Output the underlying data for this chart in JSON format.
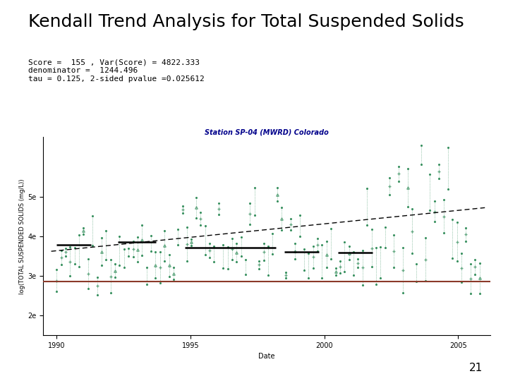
{
  "title": "Kendall Trend Analysis for Total Suspended Solids",
  "page_number": "21",
  "stats_text": "Score =  155 , Var(Score) = 4822.333\ndenominator =  1244.496\ntau = 0.125, 2-sided pvalue =0.025612",
  "plot_title": "Station SP-04 (MWRD) Colorado",
  "plot_title_color": "#00008B",
  "xlabel": "Date",
  "ylabel": "log(TOTAL SUSPENDED SOLIDS (mg/L))",
  "xmin": 1989.5,
  "xmax": 2006.2,
  "ymin": 1.5,
  "ymax": 6.5,
  "yticks": [
    2,
    3,
    4,
    5
  ],
  "ytick_labels": [
    "2e",
    "3e",
    "4e",
    "5e"
  ],
  "xticks": [
    1990,
    1995,
    2000,
    2005
  ],
  "red_line_y": 2.85,
  "trend_line_x": [
    1989.8,
    2006.0
  ],
  "trend_line_y": [
    3.62,
    4.72
  ],
  "segments": [
    {
      "x": [
        1990.0,
        1991.3
      ],
      "y": 3.78
    },
    {
      "x": [
        1992.3,
        1993.7
      ],
      "y": 3.85
    },
    {
      "x": [
        1994.8,
        1998.2
      ],
      "y": 3.72
    },
    {
      "x": [
        1998.5,
        1999.8
      ],
      "y": 3.6
    },
    {
      "x": [
        2000.5,
        2001.8
      ],
      "y": 3.58
    }
  ],
  "scatter_color": "#2E8B57",
  "background_color": "#ffffff",
  "title_fontsize": 18,
  "stats_fontsize": 8,
  "plot_title_fontsize": 7,
  "ylabel_fontsize": 6,
  "tick_fontsize": 7
}
